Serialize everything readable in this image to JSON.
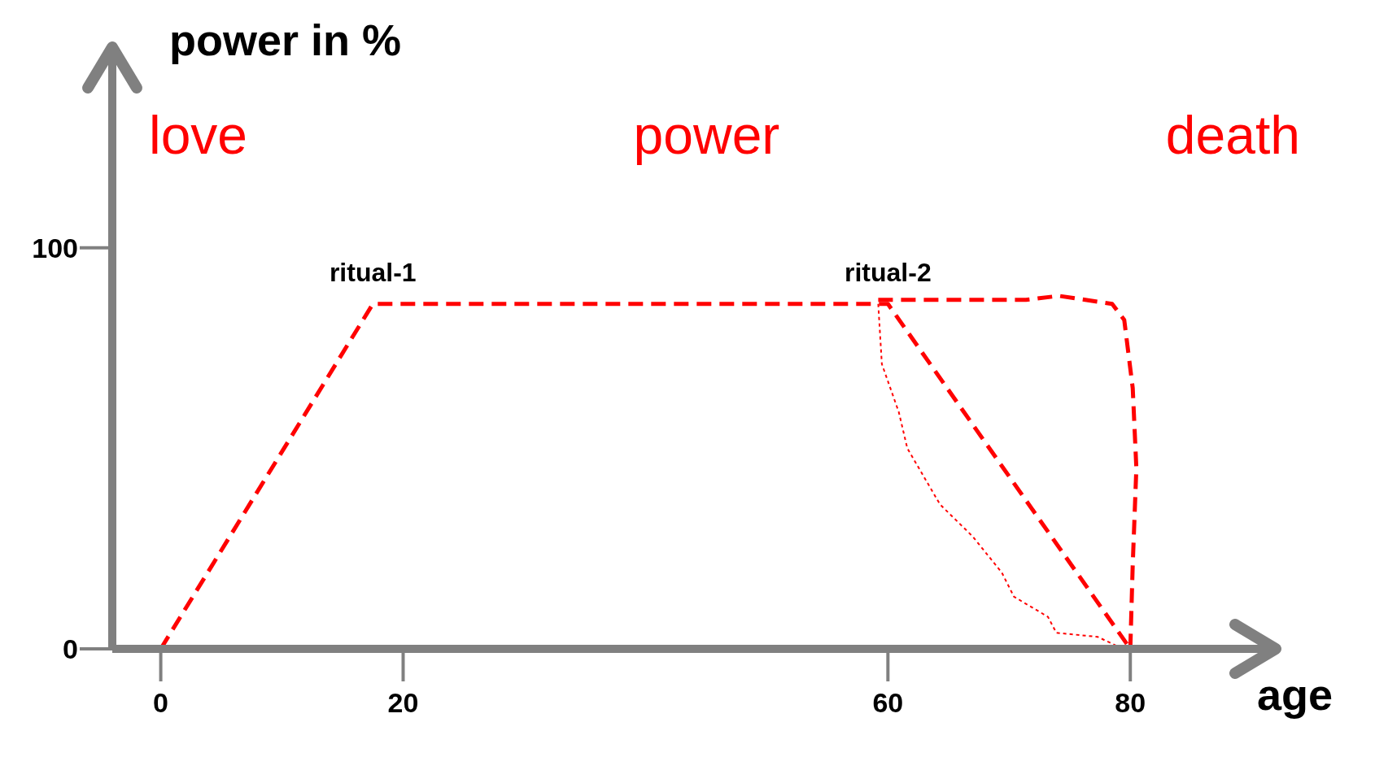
{
  "chart_data": {
    "type": "line",
    "xlabel": "age",
    "ylabel": "power in %",
    "xlim": [
      -4,
      92
    ],
    "ylim": [
      0,
      150
    ],
    "xticks": [
      0,
      20,
      60,
      80
    ],
    "yticks": [
      0,
      100
    ],
    "marker": "none",
    "series": [
      {
        "color": "#ff0000",
        "line_style": "dashed",
        "x": [
          0,
          17.5,
          60,
          80
        ],
        "values": [
          0,
          86,
          86,
          0
        ]
      },
      {
        "color": "#ff0000",
        "line_style": "dotted",
        "x": [
          59.2,
          59.5,
          60.9,
          61.6,
          64.3,
          67,
          69.4,
          70.4,
          73.2,
          73.9,
          77.3,
          79.4
        ],
        "values": [
          86,
          71,
          59,
          50,
          36,
          28,
          19,
          13,
          8,
          4,
          3,
          0
        ]
      },
      {
        "color": "#ff0000",
        "line_style": "dashed",
        "x": [
          59.2,
          71.4,
          74.1,
          78.5,
          79.5,
          80.2,
          80.5,
          80.2,
          80
        ],
        "values": [
          87,
          87,
          88,
          86,
          82,
          65,
          45,
          21,
          0
        ]
      }
    ],
    "annotations": [
      "love",
      "power",
      "death",
      {
        "text": "ritual-1",
        "x": 17.5,
        "y": 86
      },
      {
        "text": "ritual-2",
        "x": 60,
        "y": 86
      }
    ]
  }
}
